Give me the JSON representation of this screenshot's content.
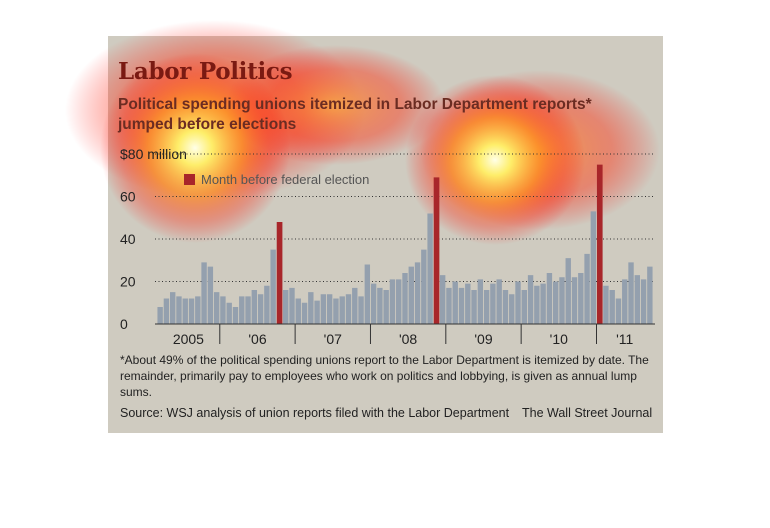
{
  "colors": {
    "panel": "#cfcbc0",
    "bar": "#94a0ae",
    "highlight": "#a8262a",
    "title": "#7a1a12",
    "subtitle": "#6b2c22",
    "text": "#222222"
  },
  "header": {
    "title": "Labor Politics",
    "subtitle": "Political spending unions itemized in Labor Department reports* jumped before elections"
  },
  "footer": {
    "footnote": "*About 49% of the political spending unions report to the Labor Department is itemized by date. The remainder, primarily pay to employees who work on politics and lobbying, is given as annual lump sums.",
    "source": "Source: WSJ analysis of union reports filed with the Labor Department",
    "credit": "The Wall Street Journal"
  },
  "chart_data": {
    "type": "bar",
    "title": "Labor Politics",
    "subtitle": "Political spending unions itemized in Labor Department reports* jumped before elections",
    "ylim": [
      0,
      80
    ],
    "yticks": [
      {
        "value": 0,
        "label": "0"
      },
      {
        "value": 20,
        "label": "20"
      },
      {
        "value": 40,
        "label": "40"
      },
      {
        "value": 60,
        "label": "60"
      },
      {
        "value": 80,
        "label": "$80 million"
      }
    ],
    "grid": true,
    "legend": [
      {
        "label": "Month before federal election",
        "color": "#a8262a"
      }
    ],
    "year_labels": [
      "2005",
      "'06",
      "'07",
      "'08",
      "'09",
      "'10",
      "'11"
    ],
    "series": [
      {
        "values": [
          8,
          12,
          15,
          13,
          12,
          12,
          13,
          29,
          27,
          15,
          13,
          10,
          8,
          13,
          13,
          16,
          14,
          18,
          35,
          48,
          16,
          17,
          12,
          10,
          15,
          11,
          14,
          14,
          12,
          13,
          14,
          17,
          13,
          28,
          19,
          17,
          16,
          21,
          21,
          24,
          27,
          29,
          35,
          52,
          69,
          23,
          17,
          20,
          17,
          19,
          16,
          21,
          16,
          19,
          21,
          16,
          14,
          20,
          16,
          23,
          18,
          19,
          24,
          20,
          22,
          31,
          22,
          24,
          33,
          53,
          75,
          18,
          16,
          12,
          21,
          29,
          23,
          21,
          27
        ],
        "highlight_indices": [
          19,
          44,
          70
        ]
      }
    ]
  }
}
